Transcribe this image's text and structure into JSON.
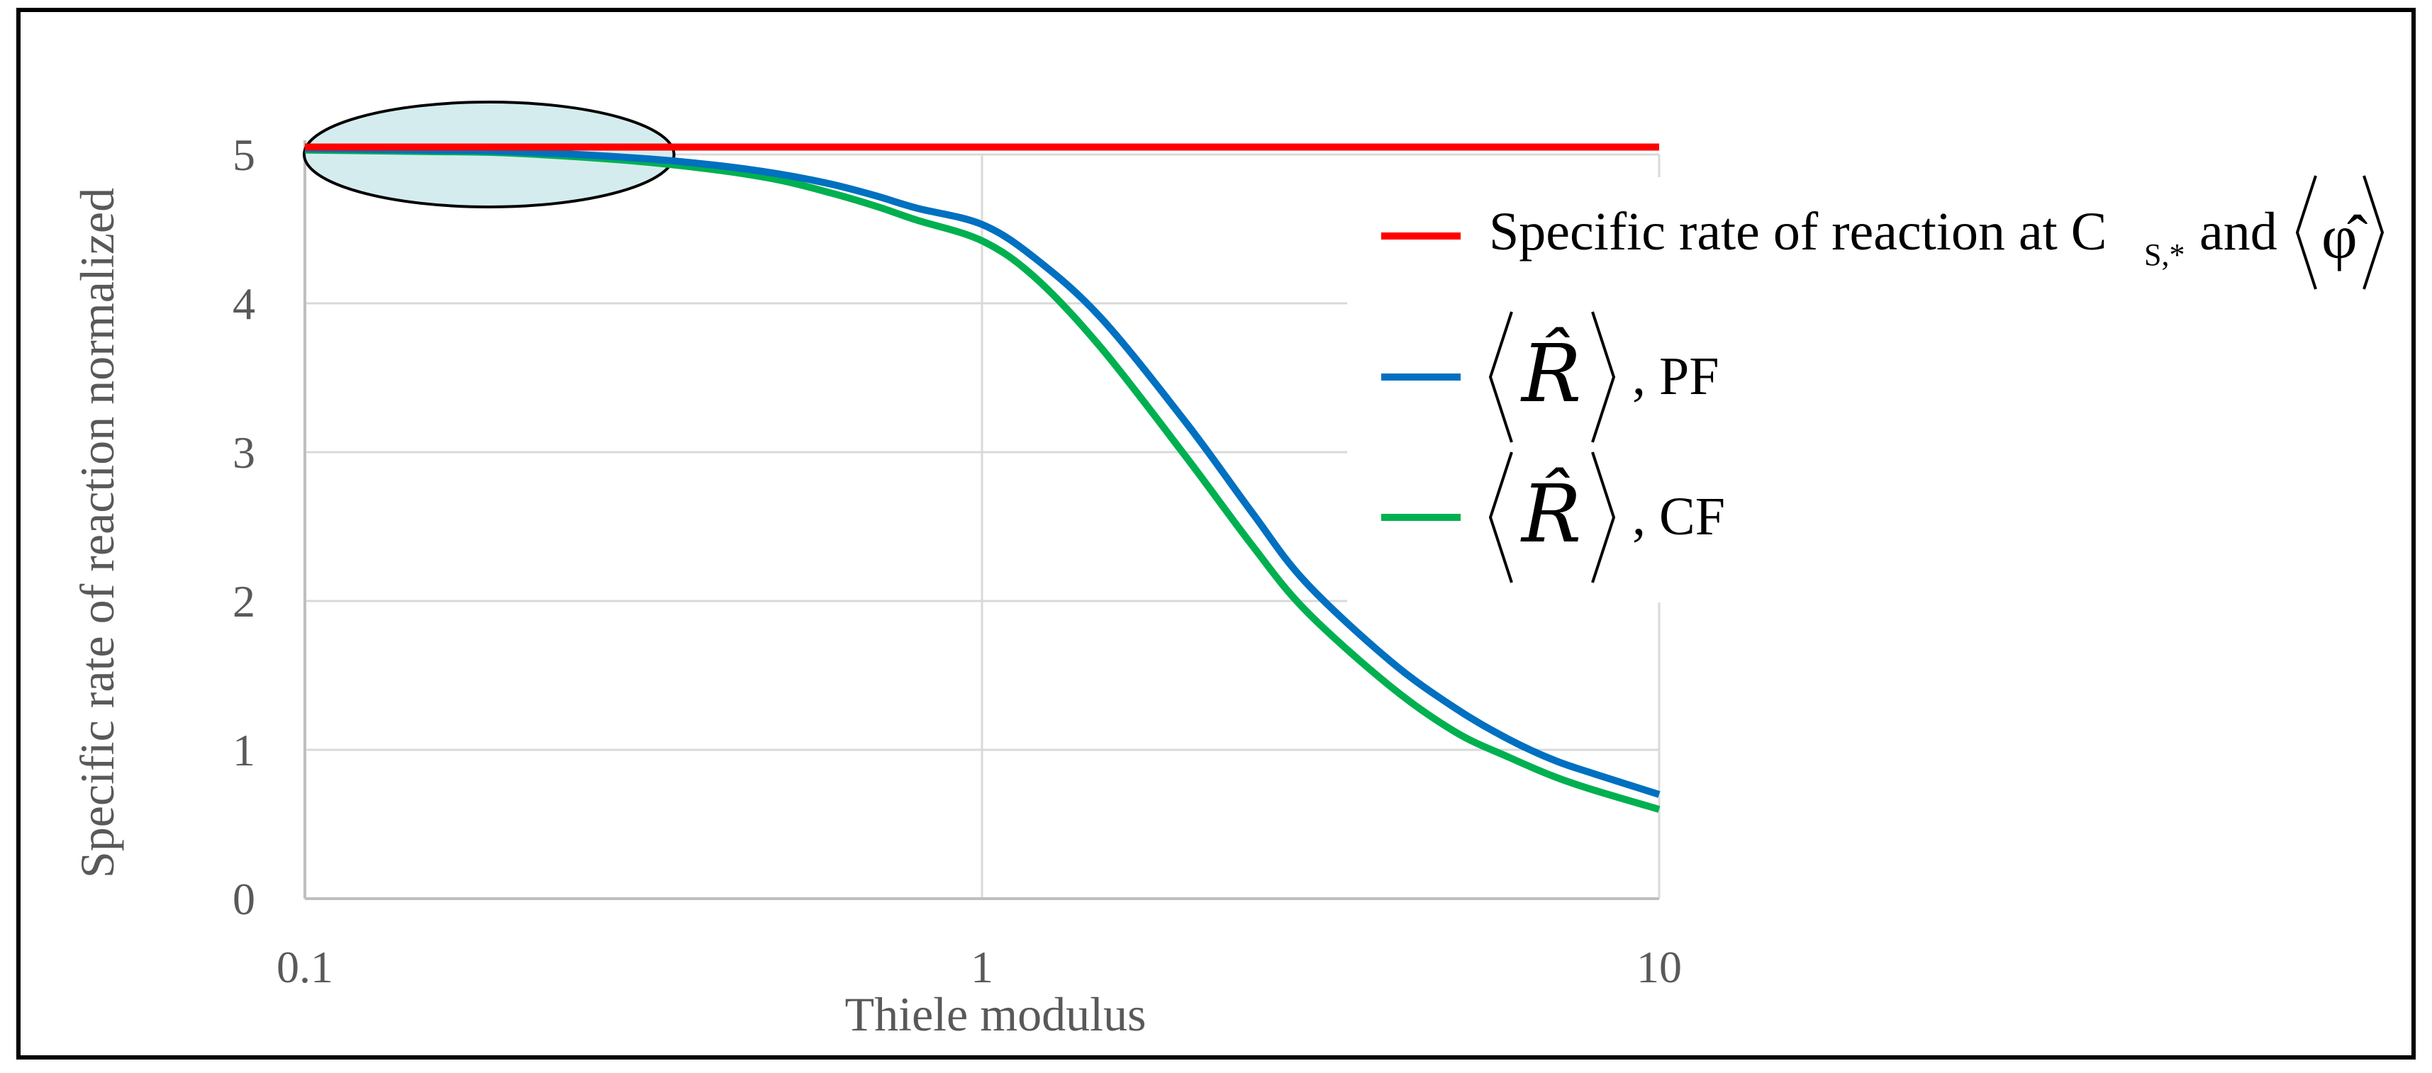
{
  "chart_data": {
    "type": "line",
    "title": "",
    "xlabel": "Thiele modulus",
    "ylabel": "Specific rate of reaction normalized",
    "xscale": "log",
    "xlim": [
      0.1,
      10
    ],
    "ylim": [
      0,
      5
    ],
    "x_ticks": [
      0.1,
      1,
      10
    ],
    "x_tick_labels": [
      "0.1",
      "1",
      "10"
    ],
    "y_ticks": [
      0,
      1,
      2,
      3,
      4,
      5
    ],
    "y_tick_labels": [
      "0",
      "1",
      "2",
      "3",
      "4",
      "5"
    ],
    "grid": true,
    "legend_position": "right",
    "x": [
      0.1,
      0.15,
      0.2,
      0.3,
      0.4,
      0.5,
      0.6,
      0.7,
      0.8,
      1.0,
      1.2,
      1.5,
      2.0,
      2.5,
      3.0,
      4.0,
      5.0,
      6.0,
      7.0,
      8.0,
      10.0
    ],
    "series": [
      {
        "name": "Specific rate of reaction at C_S,* and ⟨φ̂⟩",
        "color": "#ff0000",
        "values": [
          5.05,
          5.05,
          5.05,
          5.05,
          5.05,
          5.05,
          5.05,
          5.05,
          5.05,
          5.05,
          5.05,
          5.05,
          5.05,
          5.05,
          5.05,
          5.05,
          5.05,
          5.05,
          5.05,
          5.05,
          5.05
        ]
      },
      {
        "name": "⟨R̂⟩, PF",
        "color": "#0070c0",
        "values": [
          5.04,
          5.03,
          5.02,
          4.98,
          4.93,
          4.87,
          4.8,
          4.72,
          4.64,
          4.53,
          4.3,
          3.9,
          3.2,
          2.6,
          2.13,
          1.6,
          1.28,
          1.07,
          0.93,
          0.84,
          0.7
        ]
      },
      {
        "name": "⟨R̂⟩, CF",
        "color": "#00b050",
        "values": [
          5.03,
          5.02,
          5.01,
          4.96,
          4.9,
          4.83,
          4.74,
          4.65,
          4.56,
          4.42,
          4.17,
          3.7,
          2.97,
          2.38,
          1.94,
          1.43,
          1.12,
          0.95,
          0.82,
          0.73,
          0.6
        ]
      }
    ],
    "annotations": [
      {
        "type": "ellipse",
        "label": "highlighted region near x 0.1–0.3, y ≈ 5"
      }
    ]
  },
  "legend": {
    "red_label": "Specific rate of reaction at C",
    "red_subscript": "S,*",
    "red_and": "and",
    "red_phi": "φ̂",
    "blue_symbol": "R̂",
    "blue_suffix": ", PF",
    "green_symbol": "R̂",
    "green_suffix": ", CF"
  },
  "colors": {
    "red": "#ff0000",
    "blue": "#0070c0",
    "green": "#00b050",
    "grid": "#d9d9d9",
    "axis": "#bfbfbf",
    "ellipse_fill": "#d5ecee"
  }
}
